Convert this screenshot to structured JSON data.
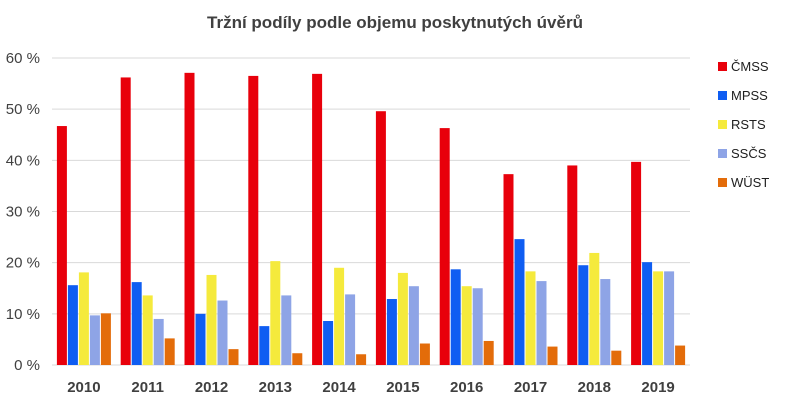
{
  "chart_data": {
    "type": "bar",
    "title": "Tržní podíly podle objemu poskytnutých úvěrů",
    "xlabel": "",
    "ylabel": "",
    "categories": [
      "2010",
      "2011",
      "2012",
      "2013",
      "2014",
      "2015",
      "2016",
      "2017",
      "2018",
      "2019"
    ],
    "ylim": [
      0,
      60
    ],
    "yticks": [
      "0 %",
      "10 %",
      "20 %",
      "30 %",
      "40 %",
      "50 %",
      "60 %"
    ],
    "grid": true,
    "legend_position": "right",
    "series": [
      {
        "name": "ČMSS",
        "color": "#e8000b",
        "values": [
          46.7,
          56.2,
          57.1,
          56.5,
          56.9,
          49.6,
          46.3,
          37.3,
          39.0,
          39.7
        ]
      },
      {
        "name": "MPSS",
        "color": "#0f5df2",
        "values": [
          15.6,
          16.2,
          10.0,
          7.6,
          8.6,
          12.9,
          18.7,
          24.6,
          19.5,
          20.1
        ]
      },
      {
        "name": "RSTS",
        "color": "#f5ea3c",
        "values": [
          18.1,
          13.6,
          17.6,
          20.3,
          19.0,
          18.0,
          15.4,
          18.3,
          21.9,
          18.3
        ]
      },
      {
        "name": "SSČS",
        "color": "#8ea4e6",
        "values": [
          9.7,
          9.0,
          12.6,
          13.6,
          13.8,
          15.4,
          15.0,
          16.4,
          16.8,
          18.3
        ]
      },
      {
        "name": "WÜST",
        "color": "#e36c0a",
        "values": [
          10.1,
          5.2,
          3.1,
          2.3,
          2.1,
          4.2,
          4.7,
          3.6,
          2.8,
          3.8
        ]
      }
    ]
  }
}
